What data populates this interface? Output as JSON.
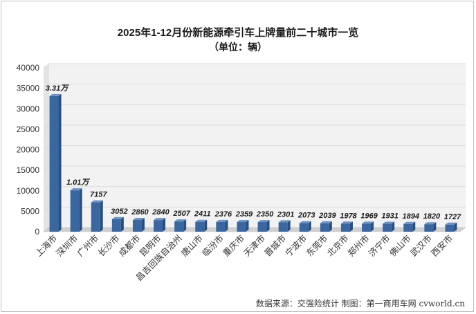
{
  "chart_data": {
    "type": "bar",
    "title": "2025年1-12月份新能源牵引车上牌量前二十城市一览",
    "subtitle": "（单位：辆）",
    "xlabel": "",
    "ylabel": "",
    "ylim": [
      0,
      40000
    ],
    "yticks": [
      "0",
      "5000",
      "10000",
      "15000",
      "20000",
      "25000",
      "30000",
      "35000",
      "40000"
    ],
    "grid": true,
    "categories": [
      "上海市",
      "深圳市",
      "广州市",
      "长沙市",
      "成都市",
      "昆明市",
      "昌吉回族自治州",
      "唐山市",
      "临汾市",
      "重庆市",
      "天津市",
      "晋城市",
      "宁波市",
      "东莞市",
      "北京市",
      "郑州市",
      "济宁市",
      "佛山市",
      "武汉市",
      "西安市"
    ],
    "values": [
      33100,
      10100,
      7157,
      3052,
      2860,
      2840,
      2507,
      2411,
      2376,
      2359,
      2350,
      2301,
      2073,
      2039,
      1978,
      1969,
      1931,
      1894,
      1820,
      1727
    ],
    "data_labels": [
      "3.31万",
      "1.01万",
      "7157",
      "3052",
      "2860",
      "2840",
      "2507",
      "2411",
      "2376",
      "2359",
      "2350",
      "2301",
      "2073",
      "2039",
      "1978",
      "1969",
      "1931",
      "1894",
      "1820",
      "1727"
    ],
    "colors": {
      "bar_front": "#3a67a0",
      "bar_side": "#284f80",
      "bar_top": "#6e93c4",
      "grid": "#d9d9d9",
      "wall": "#f2f2f2",
      "floor": "#d0d0d0"
    }
  },
  "source": "数据来源：交强险统计  制图：第一商用车网 cvworld.cn"
}
